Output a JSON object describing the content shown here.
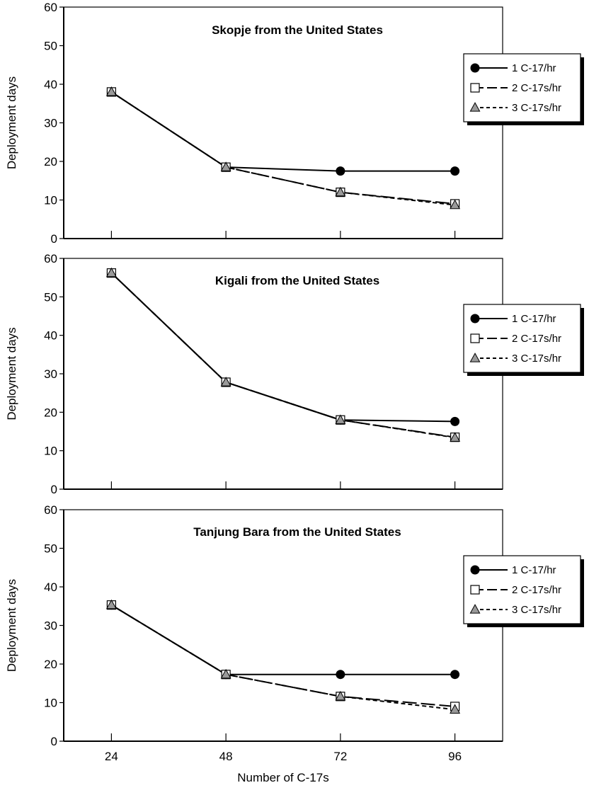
{
  "chart_data": [
    {
      "type": "line",
      "title": "Skopje from the United States",
      "xlabel": "",
      "ylabel": "Deployment days",
      "x": [
        24,
        48,
        72,
        96
      ],
      "xticks": [
        "24",
        "48",
        "72",
        "96"
      ],
      "xlim": [
        14,
        106
      ],
      "ylim": [
        0,
        60
      ],
      "yticks": [
        "0",
        "10",
        "20",
        "30",
        "40",
        "50",
        "60"
      ],
      "grid": false,
      "legend_placement": "right",
      "series": [
        {
          "name": "1 C-17/hr",
          "values": [
            38,
            18.5,
            17.5,
            17.5
          ],
          "marker": "circle",
          "line": "solid",
          "color": "#000000"
        },
        {
          "name": "2 C-17s/hr",
          "values": [
            38,
            18.5,
            12,
            9
          ],
          "marker": "square",
          "line": "longdash",
          "color": "#ffffff"
        },
        {
          "name": "3 C-17s/hr",
          "values": [
            38,
            18.5,
            12,
            8.7
          ],
          "marker": "triangle",
          "line": "shortdash",
          "color": "#999999"
        }
      ]
    },
    {
      "type": "line",
      "title": "Kigali from the United States",
      "xlabel": "",
      "ylabel": "Deployment days",
      "x": [
        24,
        48,
        72,
        96
      ],
      "xticks": [
        "24",
        "48",
        "72",
        "96"
      ],
      "xlim": [
        14,
        106
      ],
      "ylim": [
        0,
        60
      ],
      "yticks": [
        "0",
        "10",
        "20",
        "30",
        "40",
        "50",
        "60"
      ],
      "grid": false,
      "legend_placement": "right",
      "series": [
        {
          "name": "1 C-17/hr",
          "values": [
            56.2,
            27.8,
            18,
            17.6
          ],
          "marker": "circle",
          "line": "solid",
          "color": "#000000"
        },
        {
          "name": "2 C-17s/hr",
          "values": [
            56.2,
            27.8,
            18,
            13.5
          ],
          "marker": "square",
          "line": "longdash",
          "color": "#ffffff"
        },
        {
          "name": "3 C-17s/hr",
          "values": [
            56.2,
            27.8,
            18,
            13.4
          ],
          "marker": "triangle",
          "line": "shortdash",
          "color": "#999999"
        }
      ]
    },
    {
      "type": "line",
      "title": "Tanjung Bara from the United States",
      "xlabel": "Number of C-17s",
      "ylabel": "Deployment days",
      "x": [
        24,
        48,
        72,
        96
      ],
      "xticks": [
        "24",
        "48",
        "72",
        "96"
      ],
      "xlim": [
        14,
        106
      ],
      "ylim": [
        0,
        60
      ],
      "yticks": [
        "0",
        "10",
        "20",
        "30",
        "40",
        "50",
        "60"
      ],
      "grid": false,
      "legend_placement": "right",
      "series": [
        {
          "name": "1 C-17/hr",
          "values": [
            35.3,
            17.3,
            17.3,
            17.3
          ],
          "marker": "circle",
          "line": "solid",
          "color": "#000000"
        },
        {
          "name": "2 C-17s/hr",
          "values": [
            35.3,
            17.3,
            11.6,
            9
          ],
          "marker": "square",
          "line": "longdash",
          "color": "#ffffff"
        },
        {
          "name": "3 C-17s/hr",
          "values": [
            35.3,
            17.3,
            11.6,
            8.2
          ],
          "marker": "triangle",
          "line": "shortdash",
          "color": "#999999"
        }
      ]
    }
  ]
}
